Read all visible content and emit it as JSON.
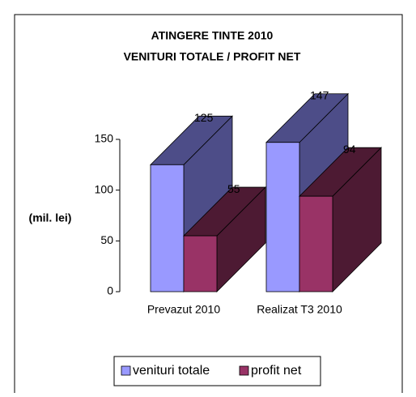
{
  "chart_data": {
    "type": "bar3d",
    "title": "ATINGERE TINTE 2010",
    "subtitle": "VENITURI TOTALE / PROFIT NET",
    "ylabel": "(mil. lei)",
    "categories": [
      "Prevazut 2010",
      "Realizat T3 2010"
    ],
    "series": [
      {
        "name": "venituri totale",
        "color": "#9999ff",
        "side_color": "#4d4d88",
        "values": [
          125,
          147
        ]
      },
      {
        "name": "profit net",
        "color": "#993366",
        "side_color": "#4d1a33",
        "values": [
          55,
          94
        ]
      }
    ],
    "ylim": [
      0,
      150
    ],
    "yticks": [
      0,
      50,
      100,
      150
    ],
    "legend": "bottom"
  }
}
